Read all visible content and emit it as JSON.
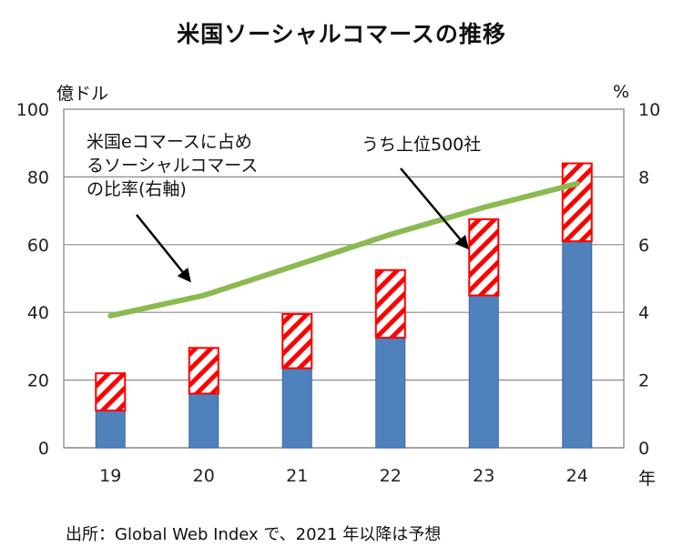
{
  "chart_data": {
    "type": "bar",
    "title": "米国ソーシャルコマースの推移",
    "categories": [
      "19",
      "20",
      "21",
      "22",
      "23",
      "24"
    ],
    "xlabel": "年",
    "ylabel": "億ドル",
    "y2label": "%",
    "ylim": [
      0,
      100
    ],
    "y2lim": [
      0,
      10
    ],
    "yticks": [
      "0",
      "20",
      "40",
      "60",
      "80",
      "100"
    ],
    "y2ticks": [
      "0",
      "2",
      "4",
      "6",
      "8",
      "10"
    ],
    "stacked": true,
    "grid": true,
    "series": [
      {
        "name": "うち上位500社",
        "kind": "bar",
        "color": "#4f81bd",
        "values": [
          11,
          16,
          23.5,
          32.5,
          45,
          61
        ]
      },
      {
        "kind": "bar",
        "pattern": "red-hatch",
        "color": "#ff0000",
        "values": [
          11,
          13.5,
          16,
          20,
          22.5,
          23
        ]
      },
      {
        "name": "米国eコマースに占めるソーシャルコマースの比率(右軸)",
        "kind": "line",
        "axis": "right",
        "color": "#8cba52",
        "values": [
          3.9,
          4.5,
          5.4,
          6.3,
          7.1,
          7.8
        ]
      }
    ],
    "annotations": [
      "米国eコマースに占め\nるソーシャルコマース\nの比率(右軸)",
      "うち上位500社"
    ],
    "source": "出所：Global Web Index で、2021 年以降は予想"
  }
}
